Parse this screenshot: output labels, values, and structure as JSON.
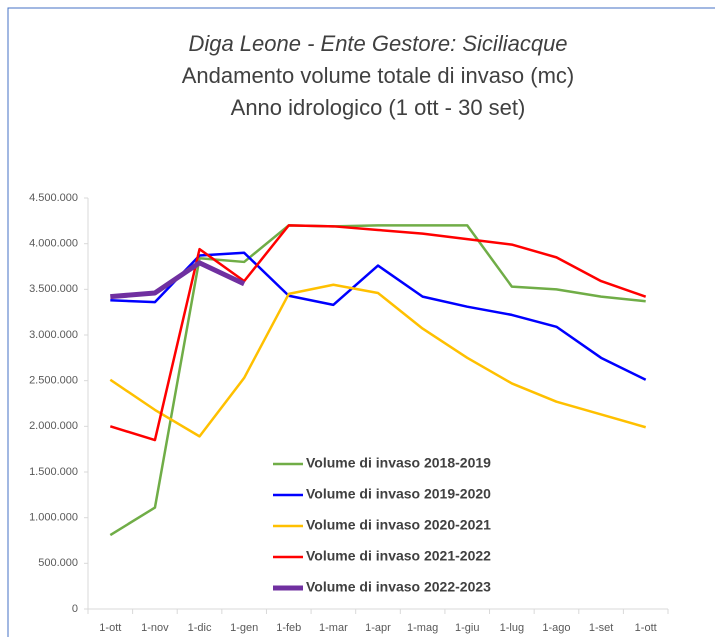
{
  "chart_data": {
    "type": "line",
    "title": [
      "Diga Leone - Ente Gestore: Siciliacque",
      "Andamento volume totale di invaso (mc)",
      "Anno idrologico (1 ott - 30 set)"
    ],
    "categories": [
      "1-ott",
      "1-nov",
      "1-dic",
      "1-gen",
      "1-feb",
      "1-mar",
      "1-apr",
      "1-mag",
      "1-giu",
      "1-lug",
      "1-ago",
      "1-set",
      "1-ott"
    ],
    "series": [
      {
        "name": "Volume di invaso 2018-2019",
        "color": "#70ad47",
        "width": 2.5,
        "values": [
          810000,
          1110000,
          3840000,
          3800000,
          4200000,
          4190000,
          4200000,
          4200000,
          4200000,
          3530000,
          3500000,
          3420000,
          3370000
        ]
      },
      {
        "name": "Volume di invaso 2019-2020",
        "color": "#0000ff",
        "width": 2.5,
        "values": [
          3380000,
          3360000,
          3870000,
          3900000,
          3430000,
          3330000,
          3760000,
          3420000,
          3310000,
          3220000,
          3090000,
          2750000,
          2510000
        ]
      },
      {
        "name": "Volume di invaso 2020-2021",
        "color": "#ffc000",
        "width": 2.5,
        "values": [
          2510000,
          2180000,
          1890000,
          2530000,
          3450000,
          3550000,
          3460000,
          3070000,
          2750000,
          2470000,
          2270000,
          2130000,
          1990000
        ]
      },
      {
        "name": "Volume di invaso 2021-2022",
        "color": "#ff0000",
        "width": 2.5,
        "values": [
          2000000,
          1850000,
          3940000,
          3590000,
          4200000,
          4190000,
          4150000,
          4110000,
          4050000,
          3990000,
          3850000,
          3590000,
          3420000
        ]
      },
      {
        "name": "Volume di invaso 2022-2023",
        "color": "#7030a0",
        "width": 5,
        "values": [
          3420000,
          3460000,
          3790000,
          3560000,
          null,
          null,
          null,
          null,
          null,
          null,
          null,
          null,
          null
        ]
      }
    ],
    "ylim": [
      0,
      4500000
    ],
    "yticks": [
      0,
      {
        "value": 500000,
        "label": "500.000"
      },
      {
        "value": 1000000,
        "label": "1.000.000"
      },
      {
        "value": 1500000,
        "label": "1.500.000"
      },
      {
        "value": 2000000,
        "label": "2.000.000"
      },
      {
        "value": 2500000,
        "label": "2.500.000"
      },
      {
        "value": 3000000,
        "label": "3.000.000"
      },
      {
        "value": 3500000,
        "label": "3.500.000"
      },
      {
        "value": 4000000,
        "label": "4.000.000"
      },
      {
        "value": 4500000,
        "label": "4.500.000"
      }
    ],
    "grid": false
  }
}
